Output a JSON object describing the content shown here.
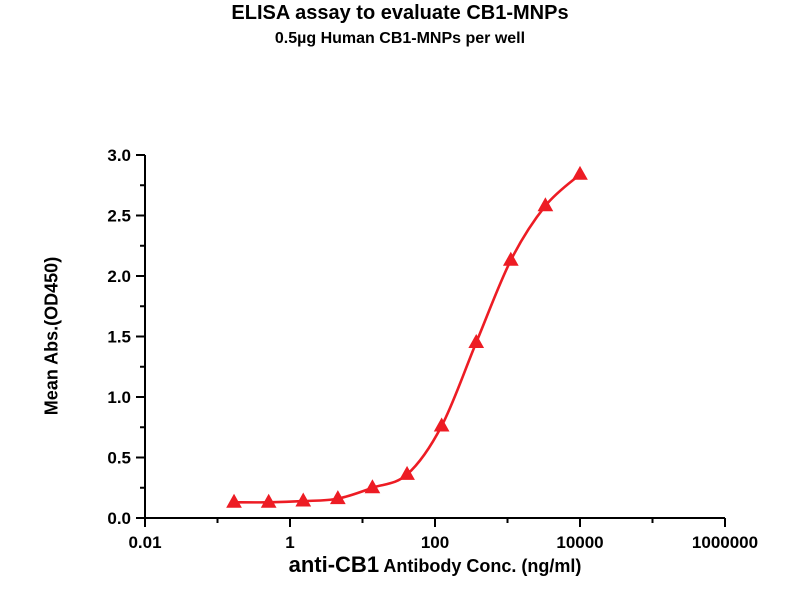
{
  "titles": {
    "title": "ELISA assay to evaluate CB1-MNPs",
    "subtitle": "0.5µg Human CB1-MNPs per well"
  },
  "axes": {
    "ylabel": "Mean Abs.(OD450)",
    "xlabel_main": "anti-CB1",
    "xlabel_rest": " Antibody Conc. (ng/ml)"
  },
  "chart_data": {
    "type": "line",
    "title": "ELISA assay to evaluate CB1-MNPs",
    "subtitle": "0.5µg Human CB1-MNPs per well",
    "xlabel": "anti-CB1 Antibody Conc. (ng/ml)",
    "ylabel": "Mean Abs.(OD450)",
    "x_scale": "log",
    "xlim": [
      0.01,
      1000000
    ],
    "ylim": [
      0.0,
      3.0
    ],
    "x": [
      0.169,
      0.508,
      1.524,
      4.57,
      13.7,
      41.2,
      123.5,
      370.4,
      1111,
      3333,
      10000
    ],
    "y": [
      0.13,
      0.13,
      0.14,
      0.16,
      0.25,
      0.36,
      0.76,
      1.45,
      2.13,
      2.58,
      2.84
    ],
    "series_name": "Human CB1-MNPs",
    "marker": "triangle",
    "line_color": "#ED1C24",
    "marker_color": "#ED1C24",
    "axis_color": "#000000",
    "grid": false,
    "legend": "none",
    "x_ticks": {
      "values": [
        0.01,
        1,
        100,
        10000,
        1000000
      ],
      "labels": [
        "0.01",
        "1",
        "100",
        "10000",
        "1000000"
      ],
      "minor_values": [
        0.1,
        10,
        1000,
        100000
      ]
    },
    "y_ticks": {
      "values": [
        0.0,
        0.5,
        1.0,
        1.5,
        2.0,
        2.5,
        3.0
      ],
      "labels": [
        "0.0",
        "0.5",
        "1.0",
        "1.5",
        "2.0",
        "2.5",
        "3.0"
      ],
      "minor_values": [
        0.25,
        0.75,
        1.25,
        1.75,
        2.25,
        2.75
      ]
    }
  }
}
